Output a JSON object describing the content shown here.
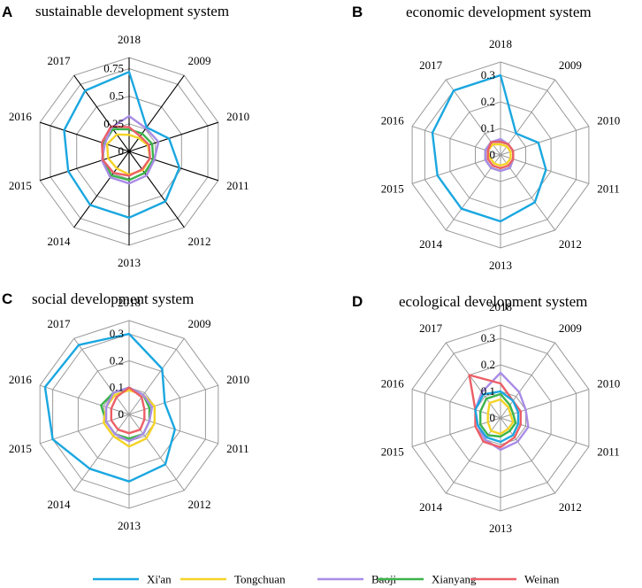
{
  "colors": {
    "Xi'an": "#1aa7e0",
    "Tongchuan": "#f5d327",
    "Baoji": "#a98ce6",
    "Xianyang": "#3cb44b",
    "Weinan": "#ec5f66"
  },
  "legend": [
    "Xi'an",
    "Tongchuan",
    "Baoji",
    "Xianyang",
    "Weinan"
  ],
  "chart_data": [
    {
      "type": "radar",
      "letter": "A",
      "title": "sustainable development system",
      "axes": [
        "2018",
        "2009",
        "2010",
        "2011",
        "2012",
        "2013",
        "2014",
        "2015",
        "2016",
        "2017"
      ],
      "ticks": [
        "0",
        "0.25",
        "0.5",
        "0.75"
      ],
      "max": 0.85,
      "series": [
        {
          "name": "Xi'an",
          "values": [
            0.72,
            0.27,
            0.38,
            0.48,
            0.56,
            0.6,
            0.6,
            0.58,
            0.62,
            0.68
          ]
        },
        {
          "name": "Tongchuan",
          "values": [
            0.15,
            0.15,
            0.18,
            0.2,
            0.21,
            0.21,
            0.19,
            0.2,
            0.21,
            0.19
          ]
        },
        {
          "name": "Baoji",
          "values": [
            0.32,
            0.26,
            0.28,
            0.24,
            0.27,
            0.29,
            0.29,
            0.26,
            0.23,
            0.27
          ]
        },
        {
          "name": "Xianyang",
          "values": [
            0.2,
            0.2,
            0.22,
            0.23,
            0.24,
            0.26,
            0.27,
            0.25,
            0.24,
            0.25
          ]
        },
        {
          "name": "Weinan",
          "values": [
            0.22,
            0.17,
            0.19,
            0.2,
            0.2,
            0.22,
            0.24,
            0.25,
            0.26,
            0.28
          ]
        }
      ]
    },
    {
      "type": "radar",
      "letter": "B",
      "title": "economic development system",
      "axes": [
        "2018",
        "2009",
        "2010",
        "2011",
        "2012",
        "2013",
        "2014",
        "2015",
        "2016",
        "2017"
      ],
      "ticks": [
        "0",
        "0.1",
        "0.2",
        "0.3"
      ],
      "max": 0.35,
      "series": [
        {
          "name": "Xi'an",
          "values": [
            0.3,
            0.1,
            0.15,
            0.18,
            0.22,
            0.25,
            0.25,
            0.25,
            0.27,
            0.3
          ]
        },
        {
          "name": "Tongchuan",
          "values": [
            0.04,
            0.04,
            0.04,
            0.04,
            0.04,
            0.04,
            0.04,
            0.04,
            0.05,
            0.05
          ]
        },
        {
          "name": "Baoji",
          "values": [
            0.06,
            0.05,
            0.05,
            0.05,
            0.06,
            0.06,
            0.06,
            0.06,
            0.06,
            0.06
          ]
        },
        {
          "name": "Xianyang",
          "values": [
            0.05,
            0.05,
            0.05,
            0.05,
            0.06,
            0.06,
            0.06,
            0.06,
            0.06,
            0.06
          ]
        },
        {
          "name": "Weinan",
          "values": [
            0.05,
            0.05,
            0.05,
            0.05,
            0.05,
            0.05,
            0.05,
            0.05,
            0.05,
            0.06
          ]
        }
      ]
    },
    {
      "type": "radar",
      "letter": "C",
      "title": "social development system",
      "axes": [
        "2018",
        "2009",
        "2010",
        "2011",
        "2012",
        "2013",
        "2014",
        "2015",
        "2016",
        "2017"
      ],
      "ticks": [
        "0",
        "0.1",
        "0.2",
        "0.3"
      ],
      "max": 0.35,
      "series": [
        {
          "name": "Xi'an",
          "values": [
            0.3,
            0.21,
            0.14,
            0.18,
            0.23,
            0.25,
            0.25,
            0.3,
            0.33,
            0.32
          ]
        },
        {
          "name": "Tongchuan",
          "values": [
            0.09,
            0.09,
            0.1,
            0.1,
            0.11,
            0.12,
            0.1,
            0.1,
            0.09,
            0.09
          ]
        },
        {
          "name": "Baoji",
          "values": [
            0.1,
            0.09,
            0.09,
            0.08,
            0.09,
            0.1,
            0.09,
            0.09,
            0.09,
            0.1
          ]
        },
        {
          "name": "Xianyang",
          "values": [
            0.1,
            0.09,
            0.08,
            0.08,
            0.09,
            0.09,
            0.09,
            0.09,
            0.11,
            0.1
          ]
        },
        {
          "name": "Weinan",
          "values": [
            0.1,
            0.08,
            0.06,
            0.06,
            0.07,
            0.07,
            0.07,
            0.07,
            0.07,
            0.08
          ]
        }
      ]
    },
    {
      "type": "radar",
      "letter": "D",
      "title": "ecological development system",
      "axes": [
        "2018",
        "2009",
        "2010",
        "2011",
        "2012",
        "2013",
        "2014",
        "2015",
        "2016",
        "2017"
      ],
      "ticks": [
        "0",
        "0.1",
        "0.2",
        "0.3"
      ],
      "max": 0.35,
      "series": [
        {
          "name": "Xi'an",
          "values": [
            0.1,
            0.08,
            0.07,
            0.07,
            0.08,
            0.09,
            0.09,
            0.09,
            0.1,
            0.11
          ]
        },
        {
          "name": "Tongchuan",
          "values": [
            0.07,
            0.05,
            0.04,
            0.05,
            0.05,
            0.06,
            0.06,
            0.05,
            0.05,
            0.07
          ]
        },
        {
          "name": "Baoji",
          "values": [
            0.17,
            0.12,
            0.1,
            0.11,
            0.11,
            0.12,
            0.1,
            0.09,
            0.1,
            0.12
          ]
        },
        {
          "name": "Xianyang",
          "values": [
            0.09,
            0.06,
            0.05,
            0.06,
            0.06,
            0.07,
            0.08,
            0.08,
            0.08,
            0.09
          ]
        },
        {
          "name": "Weinan",
          "values": [
            0.13,
            0.08,
            0.08,
            0.08,
            0.09,
            0.11,
            0.11,
            0.1,
            0.1,
            0.2
          ]
        }
      ]
    }
  ]
}
